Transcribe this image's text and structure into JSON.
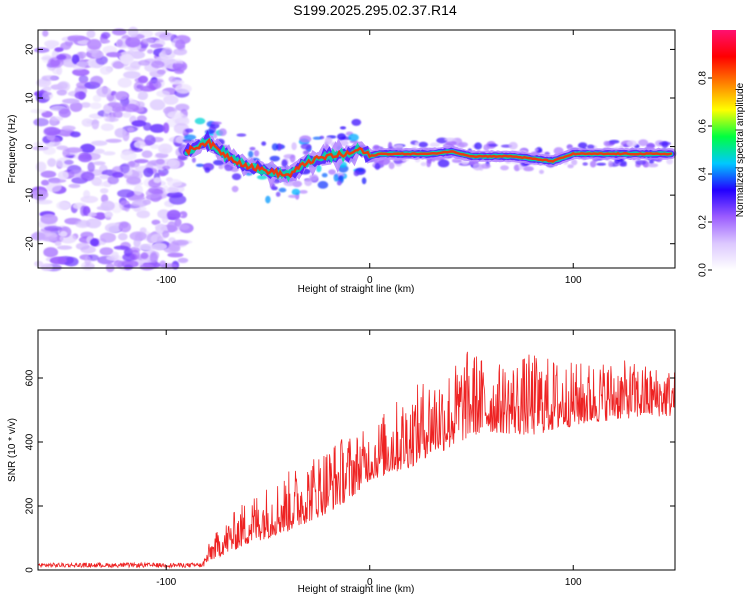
{
  "title": "S199.2025.295.02.37.R14",
  "chart_data": [
    {
      "type": "heatmap",
      "xlabel": "Height of straight line (km)",
      "ylabel": "Frequency (Hz)",
      "xlim": [
        -163,
        150
      ],
      "ylim": [
        -25,
        24
      ],
      "xticks": [
        -100,
        0,
        100
      ],
      "yticks": [
        -20,
        -10,
        0,
        10,
        20
      ],
      "ridge": {
        "x": [
          -90,
          -80,
          -70,
          -60,
          -50,
          -40,
          -30,
          -20,
          -10,
          -5,
          0,
          5,
          10,
          20,
          30,
          40,
          45,
          50,
          60,
          70,
          80,
          90,
          100,
          110,
          120,
          130,
          148
        ],
        "freq": [
          -1,
          1,
          -2,
          -4,
          -5,
          -6,
          -3,
          -2,
          -1.5,
          -0.5,
          -2,
          -1.5,
          -1.5,
          -1.5,
          -1.5,
          -1,
          -1.5,
          -2,
          -2,
          -2,
          -2.5,
          -3,
          -1.5,
          -1.5,
          -1.5,
          -1.5,
          -1.5
        ]
      },
      "colorbar": {
        "label": "Normalized spectral amplitude",
        "range": [
          0.0,
          1.0
        ],
        "ticks": [
          "0.0",
          "0.2",
          "0.4",
          "0.6",
          "0.8"
        ],
        "colors": [
          "#ffffff",
          "#dcc8ff",
          "#9b5cff",
          "#2200ff",
          "#00c8ff",
          "#00ff40",
          "#ffff00",
          "#ff8000",
          "#ff0000",
          "#ff1070"
        ]
      }
    },
    {
      "type": "line",
      "xlabel": "Height of straight line (km)",
      "ylabel": "SNR (10 * v/v)",
      "xlim": [
        -163,
        150
      ],
      "ylim": [
        0,
        750
      ],
      "xticks": [
        -100,
        0,
        100
      ],
      "yticks": [
        0,
        200,
        400,
        600
      ],
      "color": "#ee2222",
      "envelope": {
        "x": [
          -163,
          -82,
          -78,
          -60,
          -40,
          -20,
          -10,
          0,
          10,
          20,
          30,
          40,
          50,
          60,
          80,
          100,
          120,
          140,
          150
        ],
        "base": [
          8,
          8,
          30,
          80,
          120,
          180,
          220,
          280,
          300,
          320,
          360,
          380,
          420,
          430,
          420,
          450,
          470,
          480,
          480
        ],
        "peak": [
          30,
          30,
          100,
          230,
          310,
          400,
          430,
          440,
          520,
          560,
          620,
          640,
          700,
          640,
          680,
          650,
          660,
          640,
          630
        ]
      }
    }
  ]
}
